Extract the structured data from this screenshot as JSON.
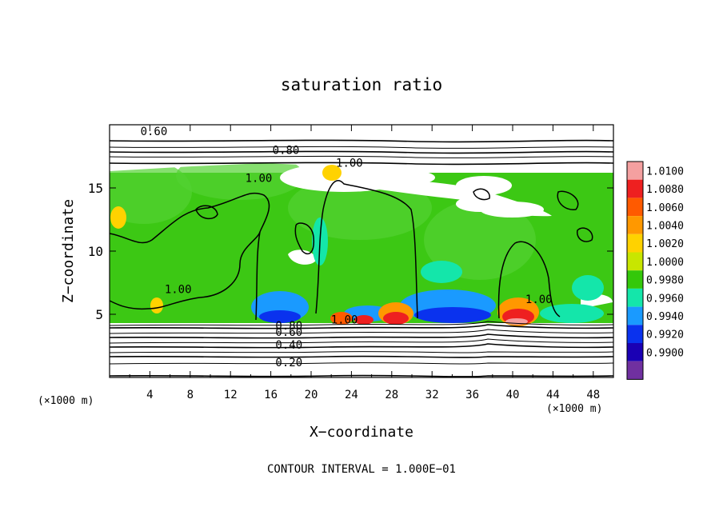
{
  "chart_data": {
    "type": "heatmap",
    "title": "saturation ratio",
    "xlabel": "X−coordinate",
    "ylabel": "Z−coordinate",
    "x_unit_label": "(×1000 m)",
    "z_unit_label": "(×1000 m)",
    "footer": "CONTOUR INTERVAL = 1.000E−01",
    "xlim": [
      0,
      50
    ],
    "ylim": [
      0,
      20
    ],
    "x_ticks": [
      4,
      8,
      12,
      16,
      20,
      24,
      28,
      32,
      36,
      40,
      44,
      48
    ],
    "x_tick_labels": [
      "4",
      "8",
      "12",
      "16",
      "20",
      "24",
      "28",
      "32",
      "36",
      "40",
      "44",
      "48"
    ],
    "y_ticks": [
      5,
      10,
      15
    ],
    "y_tick_labels": [
      "5",
      "10",
      "15"
    ],
    "colorbar": {
      "levels": [
        "1.0100",
        "1.0080",
        "1.0060",
        "1.0040",
        "1.0020",
        "1.0000",
        "0.9980",
        "0.9960",
        "0.9940",
        "0.9920",
        "0.9900"
      ],
      "colors": [
        "#f4a0a0",
        "#ee2020",
        "#ff5a00",
        "#ff9800",
        "#ffd200",
        "#c8e600",
        "#34c80a",
        "#14e6aa",
        "#1a9aff",
        "#0a32ee",
        "#1a00b4",
        "#7030a0"
      ]
    },
    "contour_labels": [
      {
        "text": "0.60",
        "x": 4.4,
        "z": 19.5
      },
      {
        "text": "0.80",
        "x": 17.5,
        "z": 18.0
      },
      {
        "text": "1.00",
        "x": 23.8,
        "z": 17.0
      },
      {
        "text": "1.00",
        "x": 14.8,
        "z": 15.8
      },
      {
        "text": "1.00",
        "x": 6.8,
        "z": 7.0
      },
      {
        "text": "1.00",
        "x": 23.3,
        "z": 4.6
      },
      {
        "text": "1.00",
        "x": 42.6,
        "z": 6.2
      },
      {
        "text": "0.80",
        "x": 17.8,
        "z": 4.1
      },
      {
        "text": "0.60",
        "x": 17.8,
        "z": 3.6
      },
      {
        "text": "0.40",
        "x": 17.8,
        "z": 2.6
      },
      {
        "text": "0.20",
        "x": 17.8,
        "z": 1.2
      }
    ]
  }
}
